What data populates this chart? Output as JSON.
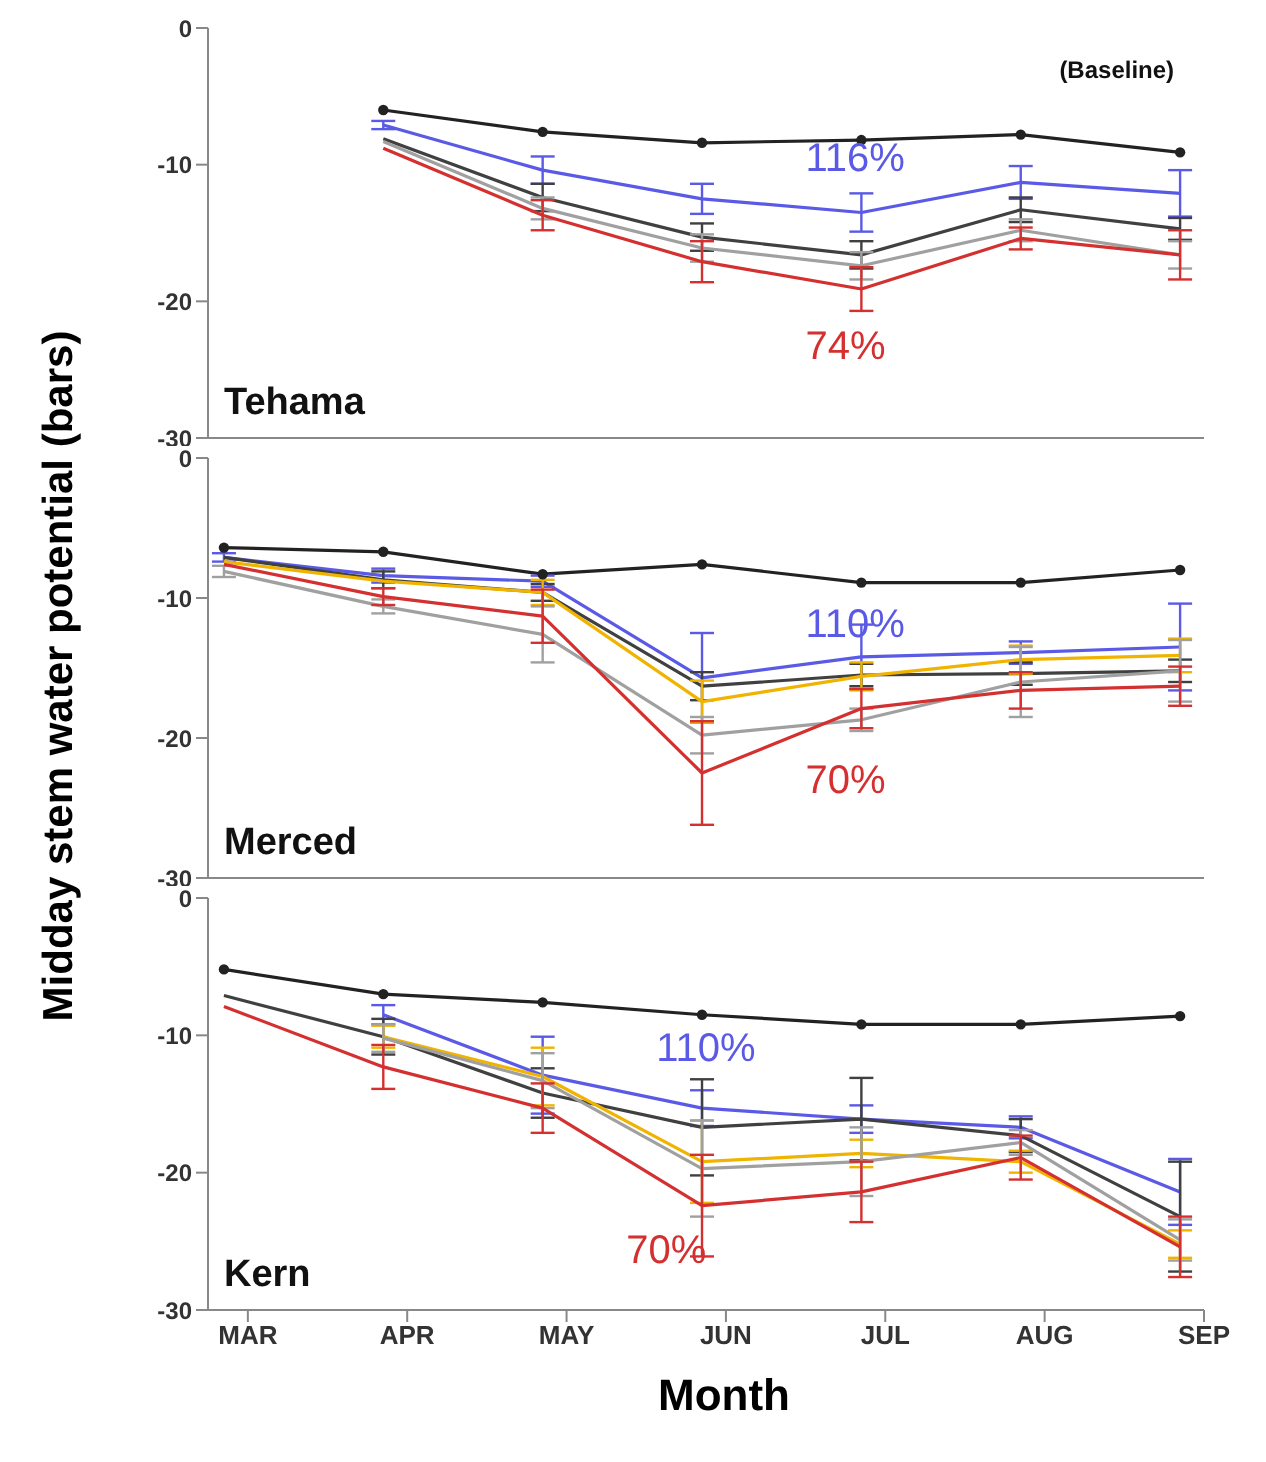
{
  "chart_data": [
    {
      "type": "line",
      "title": "Tehama",
      "categories": [
        null,
        null,
        null,
        null,
        null,
        null,
        null
      ],
      "ylim": [
        -30,
        0
      ],
      "yticks": [
        0,
        -10,
        -20,
        -30
      ],
      "tick_labels": "y",
      "grid": false,
      "legend": false,
      "line_style": "solid",
      "annotations": [
        "(Baseline)",
        "116%",
        "74%"
      ],
      "series": [
        {
          "color": "#222222",
          "marker": "circle",
          "values": [
            null,
            -6.0,
            -7.6,
            -8.4,
            -8.2,
            -7.8,
            -9.1
          ]
        },
        {
          "color": "#5a5ae6",
          "marker": "none",
          "values": [
            null,
            -7.1,
            -10.4,
            -12.5,
            -13.5,
            -11.3,
            -12.1
          ],
          "errors": [
            null,
            0.3,
            1.0,
            1.1,
            1.4,
            1.2,
            1.7
          ]
        },
        {
          "color": "#404040",
          "marker": "none",
          "values": [
            null,
            -8.1,
            -12.4,
            -15.3,
            -16.6,
            -13.3,
            -14.7
          ],
          "errors": [
            null,
            null,
            1.0,
            1.0,
            1.0,
            0.9,
            0.8
          ]
        },
        {
          "color": "#a0a0a0",
          "marker": "none",
          "values": [
            null,
            -8.3,
            -13.2,
            -16.1,
            -17.4,
            -14.8,
            -16.6
          ],
          "errors": [
            null,
            null,
            0.8,
            1.0,
            1.0,
            0.8,
            1.0
          ]
        },
        {
          "color": "#d43030",
          "marker": "none",
          "values": [
            null,
            -8.8,
            -13.7,
            -17.1,
            -19.1,
            -15.4,
            -16.6
          ],
          "errors": [
            null,
            null,
            1.1,
            1.5,
            1.6,
            0.8,
            1.8
          ]
        }
      ]
    },
    {
      "type": "line",
      "title": "Merced",
      "ylabel": "Midday stem water potential (bars)",
      "categories": [
        null,
        null,
        null,
        null,
        null,
        null,
        null
      ],
      "ylim": [
        -30,
        0
      ],
      "yticks": [
        0,
        -10,
        -20,
        -30
      ],
      "tick_labels": "y",
      "grid": false,
      "legend": false,
      "line_style": "solid",
      "annotations": [
        "110%",
        "70%"
      ],
      "series": [
        {
          "color": "#222222",
          "marker": "circle",
          "values": [
            -6.4,
            -6.7,
            -8.3,
            -7.6,
            -8.9,
            -8.9,
            -8.0
          ]
        },
        {
          "color": "#5a5ae6",
          "marker": "none",
          "values": [
            -7.1,
            -8.4,
            -8.8,
            -15.7,
            -14.2,
            -13.9,
            -13.5
          ],
          "errors": [
            0.3,
            0.5,
            0.4,
            3.2,
            2.3,
            0.8,
            3.1
          ]
        },
        {
          "color": "#404040",
          "marker": "none",
          "values": [
            -7.1,
            -8.7,
            -9.6,
            -16.3,
            -15.5,
            -15.4,
            -15.2
          ],
          "errors": [
            null,
            0.6,
            0.6,
            1.0,
            0.8,
            0.8,
            0.8
          ]
        },
        {
          "color": "#f0b400",
          "marker": "none",
          "values": [
            -7.4,
            -8.8,
            -9.6,
            -17.4,
            -15.6,
            -14.4,
            -14.1
          ],
          "errors": [
            null,
            null,
            0.9,
            1.5,
            1.0,
            1.0,
            1.2
          ]
        },
        {
          "color": "#a0a0a0",
          "marker": "none",
          "values": [
            -8.1,
            -10.6,
            -12.6,
            -19.8,
            -18.7,
            -16.0,
            -15.2
          ],
          "errors": [
            0.4,
            0.5,
            2.0,
            1.3,
            0.8,
            2.5,
            2.2
          ]
        },
        {
          "color": "#d43030",
          "marker": "none",
          "values": [
            -7.6,
            -9.9,
            -11.3,
            -22.5,
            -17.9,
            -16.6,
            -16.3
          ],
          "errors": [
            null,
            0.6,
            1.9,
            3.7,
            1.4,
            1.3,
            1.4
          ]
        }
      ]
    },
    {
      "type": "line",
      "title": "Kern",
      "xlabel": "Month",
      "categories": [
        "MAR",
        "APR",
        "MAY",
        "JUN",
        "JUL",
        "AUG",
        "SEP"
      ],
      "ylim": [
        -30,
        0
      ],
      "yticks": [
        0,
        -10,
        -20,
        -30
      ],
      "grid": false,
      "legend": false,
      "line_style": "solid",
      "annotations": [
        "110%",
        "70%"
      ],
      "series": [
        {
          "color": "#222222",
          "marker": "circle",
          "values": [
            -5.2,
            -7.0,
            -7.6,
            -8.5,
            -9.2,
            -9.2,
            -8.6
          ]
        },
        {
          "color": "#5a5ae6",
          "marker": "none",
          "values": [
            null,
            -8.5,
            -12.9,
            -15.3,
            -16.1,
            -16.7,
            -21.4
          ],
          "errors": [
            null,
            0.7,
            2.8,
            1.3,
            1.0,
            0.8,
            2.4
          ]
        },
        {
          "color": "#404040",
          "marker": "none",
          "values": [
            -7.1,
            -10.1,
            -14.2,
            -16.7,
            -16.1,
            -17.3,
            -23.2
          ],
          "errors": [
            null,
            1.3,
            1.8,
            3.5,
            3.0,
            1.2,
            4.0
          ]
        },
        {
          "color": "#f0b400",
          "marker": "none",
          "values": [
            null,
            -10.1,
            -13.0,
            -19.2,
            -18.6,
            -19.2,
            -25.2
          ],
          "errors": [
            null,
            0.8,
            2.1,
            3.0,
            1.0,
            0.8,
            1.0
          ]
        },
        {
          "color": "#a0a0a0",
          "marker": "none",
          "values": [
            null,
            -10.2,
            -13.3,
            -19.7,
            -19.2,
            -17.8,
            -24.9
          ],
          "errors": [
            null,
            1.0,
            2.0,
            3.5,
            2.5,
            0.9,
            1.5
          ]
        },
        {
          "color": "#d43030",
          "marker": "none",
          "values": [
            -7.9,
            -12.3,
            -15.3,
            -22.4,
            -21.4,
            -18.9,
            -25.4
          ],
          "errors": [
            null,
            1.6,
            1.8,
            3.7,
            2.2,
            1.6,
            2.2
          ]
        }
      ]
    }
  ]
}
